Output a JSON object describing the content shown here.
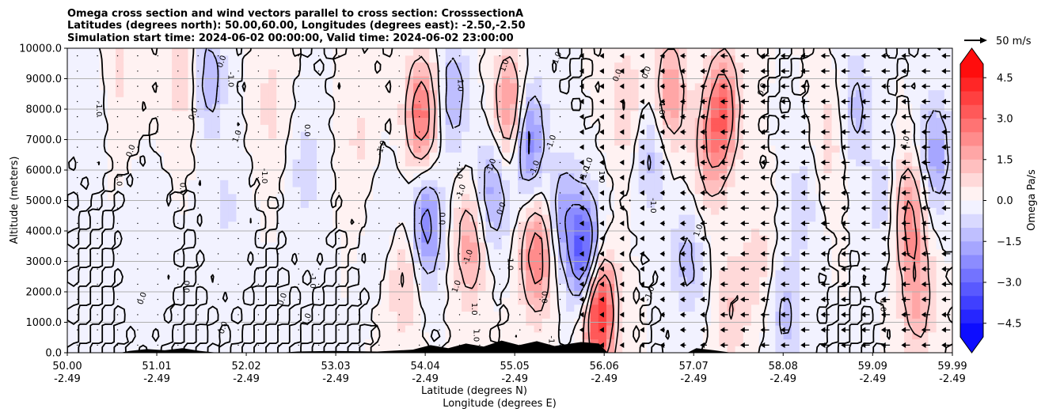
{
  "chart_data": {
    "type": "heatmap",
    "title_lines": [
      "Omega cross section and wind vectors parallel to cross section: CrosssectionA",
      "Latitudes (degrees north): 50.00,60.00, Longitudes (degrees east): -2.50,-2.50",
      "Simulation start time: 2024-06-02 00:00:00, Valid time: 2024-06-02 23:00:00"
    ],
    "ylabel": "Altitude (meters)",
    "xlabel_lat": "Latitude (degrees N)",
    "xlabel_lon": "Longitude (degrees E)",
    "ylim": [
      0,
      10000
    ],
    "xlim": [
      50.0,
      59.99
    ],
    "y_ticks": [
      0,
      1000,
      2000,
      3000,
      4000,
      5000,
      6000,
      7000,
      8000,
      9000,
      10000
    ],
    "y_tick_labels": [
      "0.0",
      "1000.0",
      "2000.0",
      "3000.0",
      "4000.0",
      "5000.0",
      "6000.0",
      "7000.0",
      "8000.0",
      "9000.0",
      "10000.0"
    ],
    "x_ticks": [
      50.0,
      51.01,
      52.02,
      53.03,
      54.04,
      55.05,
      56.06,
      57.07,
      58.08,
      59.09,
      59.99
    ],
    "x_tick_lat_labels": [
      "50.00",
      "51.01",
      "52.02",
      "53.03",
      "54.04",
      "55.05",
      "56.06",
      "57.07",
      "58.08",
      "59.09",
      "59.99"
    ],
    "x_tick_lon_labels": [
      "-2.49",
      "-2.49",
      "-2.49",
      "-2.49",
      "-2.49",
      "-2.49",
      "-2.49",
      "-2.49",
      "-2.49",
      "-2.49",
      "-2.49"
    ],
    "colorbar": {
      "label": "Omega Pa/s",
      "range": [
        -5.0,
        5.0
      ],
      "tick_values": [
        4.5,
        3.0,
        1.5,
        0.0,
        -1.5,
        -3.0,
        -4.5
      ],
      "tick_labels": [
        "4.5",
        "3.0",
        "1.5",
        "0.0",
        "−1.5",
        "−3.0",
        "−4.5"
      ],
      "levels": 20,
      "positive_color": "#ff0000",
      "negative_color": "#0000ff",
      "extend": "both"
    },
    "wind_key": {
      "label": "50 m/s",
      "speed": 50
    },
    "omega_cells": [
      {
        "lat": 50.25,
        "z": 8500,
        "v": -0.4
      },
      {
        "lat": 50.6,
        "z": 9200,
        "v": 0.6
      },
      {
        "lat": 50.9,
        "z": 3500,
        "v": -0.5
      },
      {
        "lat": 51.3,
        "z": 9000,
        "v": 0.8
      },
      {
        "lat": 51.6,
        "z": 9000,
        "v": -1.4
      },
      {
        "lat": 51.8,
        "z": 4800,
        "v": -0.6
      },
      {
        "lat": 52.3,
        "z": 8200,
        "v": 0.7
      },
      {
        "lat": 52.7,
        "z": 6000,
        "v": -0.8
      },
      {
        "lat": 53.3,
        "z": 7000,
        "v": 0.6
      },
      {
        "lat": 53.6,
        "z": 4300,
        "v": -0.6
      },
      {
        "lat": 53.8,
        "z": 2500,
        "v": 1.2
      },
      {
        "lat": 54.0,
        "z": 7800,
        "v": 2.8
      },
      {
        "lat": 54.05,
        "z": 4200,
        "v": -2.4
      },
      {
        "lat": 54.35,
        "z": 8500,
        "v": -1.5
      },
      {
        "lat": 54.55,
        "z": 3500,
        "v": 1.8
      },
      {
        "lat": 54.8,
        "z": 5200,
        "v": -1.8
      },
      {
        "lat": 55.0,
        "z": 8000,
        "v": 2.5
      },
      {
        "lat": 55.2,
        "z": 7000,
        "v": -2.6
      },
      {
        "lat": 55.3,
        "z": 3200,
        "v": 2.6
      },
      {
        "lat": 55.6,
        "z": 4500,
        "v": -1.6
      },
      {
        "lat": 55.85,
        "z": 3200,
        "v": -3.6
      },
      {
        "lat": 56.0,
        "z": 1400,
        "v": 4.6
      },
      {
        "lat": 56.3,
        "z": 8200,
        "v": 1.0
      },
      {
        "lat": 56.6,
        "z": 6500,
        "v": -1.2
      },
      {
        "lat": 56.8,
        "z": 8500,
        "v": 2.0
      },
      {
        "lat": 57.0,
        "z": 3000,
        "v": -1.2
      },
      {
        "lat": 57.25,
        "z": 6500,
        "v": 1.5
      },
      {
        "lat": 57.4,
        "z": 8000,
        "v": 2.8
      },
      {
        "lat": 57.5,
        "z": 1500,
        "v": 1.0
      },
      {
        "lat": 57.8,
        "z": 3000,
        "v": 0.7
      },
      {
        "lat": 58.1,
        "z": 1200,
        "v": -1.2
      },
      {
        "lat": 58.3,
        "z": 5000,
        "v": -0.8
      },
      {
        "lat": 58.6,
        "z": 7000,
        "v": 0.8
      },
      {
        "lat": 58.9,
        "z": 8000,
        "v": -1.2
      },
      {
        "lat": 59.2,
        "z": 5000,
        "v": -0.8
      },
      {
        "lat": 59.5,
        "z": 4500,
        "v": 2.2
      },
      {
        "lat": 59.6,
        "z": 1800,
        "v": 1.6
      },
      {
        "lat": 59.8,
        "z": 6500,
        "v": -1.8
      }
    ],
    "terrain": [
      {
        "lat": 50.0,
        "z": 0
      },
      {
        "lat": 50.6,
        "z": 0
      },
      {
        "lat": 50.7,
        "z": 60
      },
      {
        "lat": 50.9,
        "z": 120
      },
      {
        "lat": 51.1,
        "z": 80
      },
      {
        "lat": 51.3,
        "z": 150
      },
      {
        "lat": 51.5,
        "z": 60
      },
      {
        "lat": 51.7,
        "z": 0
      },
      {
        "lat": 52.4,
        "z": 0
      },
      {
        "lat": 52.6,
        "z": 40
      },
      {
        "lat": 53.0,
        "z": 60
      },
      {
        "lat": 53.5,
        "z": 40
      },
      {
        "lat": 53.9,
        "z": 100
      },
      {
        "lat": 54.1,
        "z": 250
      },
      {
        "lat": 54.3,
        "z": 150
      },
      {
        "lat": 54.5,
        "z": 300
      },
      {
        "lat": 54.7,
        "z": 200
      },
      {
        "lat": 54.9,
        "z": 400
      },
      {
        "lat": 55.1,
        "z": 250
      },
      {
        "lat": 55.3,
        "z": 380
      },
      {
        "lat": 55.5,
        "z": 220
      },
      {
        "lat": 55.8,
        "z": 350
      },
      {
        "lat": 56.0,
        "z": 300
      },
      {
        "lat": 56.1,
        "z": 0
      },
      {
        "lat": 57.0,
        "z": 0
      },
      {
        "lat": 57.1,
        "z": 150
      },
      {
        "lat": 57.3,
        "z": 80
      },
      {
        "lat": 57.5,
        "z": 0
      },
      {
        "lat": 59.99,
        "z": 0
      }
    ],
    "contour_levels": [
      -2.0,
      -1.0,
      0.0,
      1.0,
      2.0
    ],
    "contour_label_samples": [
      "0.0",
      "1.0",
      "-1.0",
      "2.0",
      "-2.0",
      "3.0"
    ]
  }
}
